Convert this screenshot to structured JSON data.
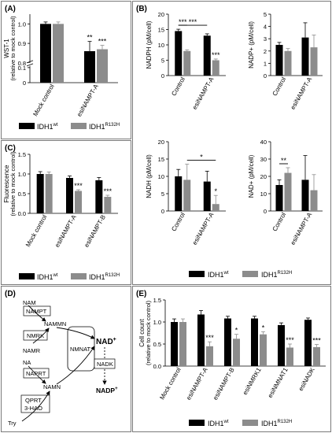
{
  "figure": {
    "colors": {
      "wt": "#000000",
      "mut": "#8c8c8c",
      "frame": "#7a7a7a"
    },
    "panels": {
      "A": {
        "label": "(A)"
      },
      "B": {
        "label": "(B)"
      },
      "C": {
        "label": "(C)"
      },
      "D": {
        "label": "(D)"
      },
      "E": {
        "label": "(E)"
      }
    },
    "legends": {
      "A": {
        "wt": "IDH1wt",
        "mut": "IDH1R132H",
        "wt_base": "IDH1",
        "wt_sup": "wt",
        "mut_base": "IDH1",
        "mut_sup": "R132H"
      },
      "B": {
        "wt": "IDH1wt",
        "mut": "IDH1R132H",
        "wt_base": "IDH1",
        "wt_sup": "wt",
        "mut_base": "IDH1",
        "mut_sup": "R132H"
      },
      "C": {
        "wt": "IDH1wt",
        "mut": "IDH1R132H",
        "wt_base": "IDH1",
        "wt_sup": "wt",
        "mut_base": "IDH1",
        "mut_sup": "R132H"
      },
      "E": {
        "wt": "IDH1wt",
        "mut": "IDH1R132H",
        "wt_base": "IDH1",
        "wt_sup": "wt",
        "mut_base": "IDH1",
        "mut_sup": "R132H"
      }
    },
    "pathway": {
      "nam": "NAM",
      "nampt": "NAMPT",
      "namn_upper": "NAMMN",
      "nmrk": "NMRK",
      "namr": "NAMR",
      "nmnat": "NMNAT",
      "nad": "NAD",
      "nad_sup": "+",
      "nadk": "NADK",
      "nadp": "NADP",
      "nadp_sup": "+",
      "na": "NA",
      "naprt": "NAPRT",
      "namn": "NAMN",
      "qprt": "QPRT",
      "hao": "3-HAO",
      "try": "Try"
    }
  },
  "chart_data": [
    {
      "id": "A",
      "type": "bar",
      "categories": [
        "Mock control",
        "esiNAMPT-A"
      ],
      "ylabel": "WST-1",
      "ylabel2": "(relative to mock control)",
      "ylim": [
        0,
        1.05
      ],
      "axis_break": [
        0.1,
        0.8
      ],
      "yticks": [
        "0",
        "0.1",
        "0.8",
        "0.9",
        "1.0"
      ],
      "series": [
        {
          "name": "IDH1wt",
          "values": [
            1.0,
            0.86
          ],
          "errors": [
            0.01,
            0.05
          ]
        },
        {
          "name": "IDH1R132H",
          "values": [
            1.0,
            0.87
          ],
          "errors": [
            0.01,
            0.02
          ]
        }
      ],
      "annotations": [
        {
          "series": 0,
          "category": 1,
          "text": "**"
        },
        {
          "series": 1,
          "category": 1,
          "text": "***"
        }
      ]
    },
    {
      "id": "B1",
      "type": "bar",
      "categories": [
        "Control",
        "esiNAMPT-A"
      ],
      "ylabel": "NADPH (pM/cell)",
      "ylim": [
        0,
        20
      ],
      "yticks": [
        "0",
        "5",
        "10",
        "15",
        "20"
      ],
      "series": [
        {
          "name": "IDH1wt",
          "values": [
            14.5,
            13.0
          ],
          "errors": [
            0.6,
            0.6
          ]
        },
        {
          "name": "IDH1R132H",
          "values": [
            8.0,
            5.0
          ],
          "errors": [
            0.4,
            0.4
          ]
        }
      ],
      "annotations": [
        {
          "series": 1,
          "category": 1,
          "text": "***"
        },
        {
          "bracket": "control",
          "text": "***"
        },
        {
          "bracket": "wt",
          "text": "***"
        }
      ]
    },
    {
      "id": "B2",
      "type": "bar",
      "categories": [
        "Control",
        "esiNAMPT-A"
      ],
      "ylabel": "NADP+ (pM/cell)",
      "ylim": [
        0,
        5
      ],
      "yticks": [
        "0",
        "1",
        "2",
        "3",
        "4",
        "5"
      ],
      "series": [
        {
          "name": "IDH1wt",
          "values": [
            2.5,
            3.1
          ],
          "errors": [
            0.2,
            1.2
          ]
        },
        {
          "name": "IDH1R132H",
          "values": [
            2.0,
            2.3
          ],
          "errors": [
            0.2,
            1.0
          ]
        }
      ],
      "annotations": []
    },
    {
      "id": "B3",
      "type": "bar",
      "categories": [
        "Control",
        "esiNAMPT-A"
      ],
      "ylabel": "NADH (pM/cell)",
      "ylim": [
        0,
        20
      ],
      "yticks": [
        "0",
        "5",
        "10",
        "15",
        "20"
      ],
      "series": [
        {
          "name": "IDH1wt",
          "values": [
            10.0,
            8.5
          ],
          "errors": [
            2.0,
            3.0
          ]
        },
        {
          "name": "IDH1R132H",
          "values": [
            9.0,
            2.0
          ],
          "errors": [
            4.5,
            2.5
          ]
        }
      ],
      "annotations": [
        {
          "series": 1,
          "category": 1,
          "text": "*"
        },
        {
          "bracket": "mut",
          "text": "*"
        }
      ]
    },
    {
      "id": "B4",
      "type": "bar",
      "categories": [
        "Control",
        "esiNAMPT-A"
      ],
      "ylabel": "NAD+ (pM/cell)",
      "ylim": [
        0,
        40
      ],
      "yticks": [
        "0",
        "10",
        "20",
        "30",
        "40"
      ],
      "series": [
        {
          "name": "IDH1wt",
          "values": [
            15.0,
            18.0
          ],
          "errors": [
            3.0,
            14.0
          ]
        },
        {
          "name": "IDH1R132H",
          "values": [
            22.0,
            12.0
          ],
          "errors": [
            3.0,
            9.0
          ]
        }
      ],
      "annotations": [
        {
          "bracket": "control",
          "text": "**"
        }
      ]
    },
    {
      "id": "C",
      "type": "bar",
      "categories": [
        "Mock control",
        "esiNAMPT-A",
        "esiNAMPT-B"
      ],
      "ylabel": "Fluorescence",
      "ylabel2": "(relative to mock control)",
      "ylim": [
        0,
        1.5
      ],
      "yticks": [
        "0.0",
        "0.5",
        "1.0",
        "1.5"
      ],
      "series": [
        {
          "name": "IDH1wt",
          "values": [
            1.0,
            0.9,
            0.84
          ],
          "errors": [
            0.06,
            0.05,
            0.07
          ]
        },
        {
          "name": "IDH1R132H",
          "values": [
            1.0,
            0.57,
            0.42
          ],
          "errors": [
            0.05,
            0.03,
            0.04
          ]
        }
      ],
      "annotations": [
        {
          "series": 1,
          "category": 1,
          "text": "***"
        },
        {
          "series": 1,
          "category": 2,
          "text": "***"
        }
      ]
    },
    {
      "id": "E",
      "type": "bar",
      "categories": [
        "Mock control",
        "esiNAMPT-A",
        "esiNAMPT-B",
        "esiNMRK1",
        "esiNMNAT1",
        "esiNADK"
      ],
      "ylabel": "Cell count",
      "ylabel2": "(relative to mock control)",
      "ylim": [
        0,
        1.5
      ],
      "yticks": [
        "0.0",
        "0.5",
        "1.0",
        "1.5"
      ],
      "series": [
        {
          "name": "IDH1wt",
          "values": [
            1.0,
            1.17,
            1.08,
            1.08,
            0.93,
            1.05
          ],
          "errors": [
            0.07,
            0.09,
            0.05,
            0.05,
            0.05,
            0.04
          ]
        },
        {
          "name": "IDH1R132H",
          "values": [
            1.0,
            0.45,
            0.62,
            0.72,
            0.42,
            0.43
          ],
          "errors": [
            0.07,
            0.1,
            0.1,
            0.06,
            0.08,
            0.06
          ]
        }
      ],
      "annotations": [
        {
          "series": 1,
          "category": 1,
          "text": "***"
        },
        {
          "series": 1,
          "category": 2,
          "text": "*"
        },
        {
          "series": 1,
          "category": 3,
          "text": "*"
        },
        {
          "series": 1,
          "category": 4,
          "text": "***"
        },
        {
          "series": 1,
          "category": 5,
          "text": "***"
        }
      ]
    }
  ]
}
